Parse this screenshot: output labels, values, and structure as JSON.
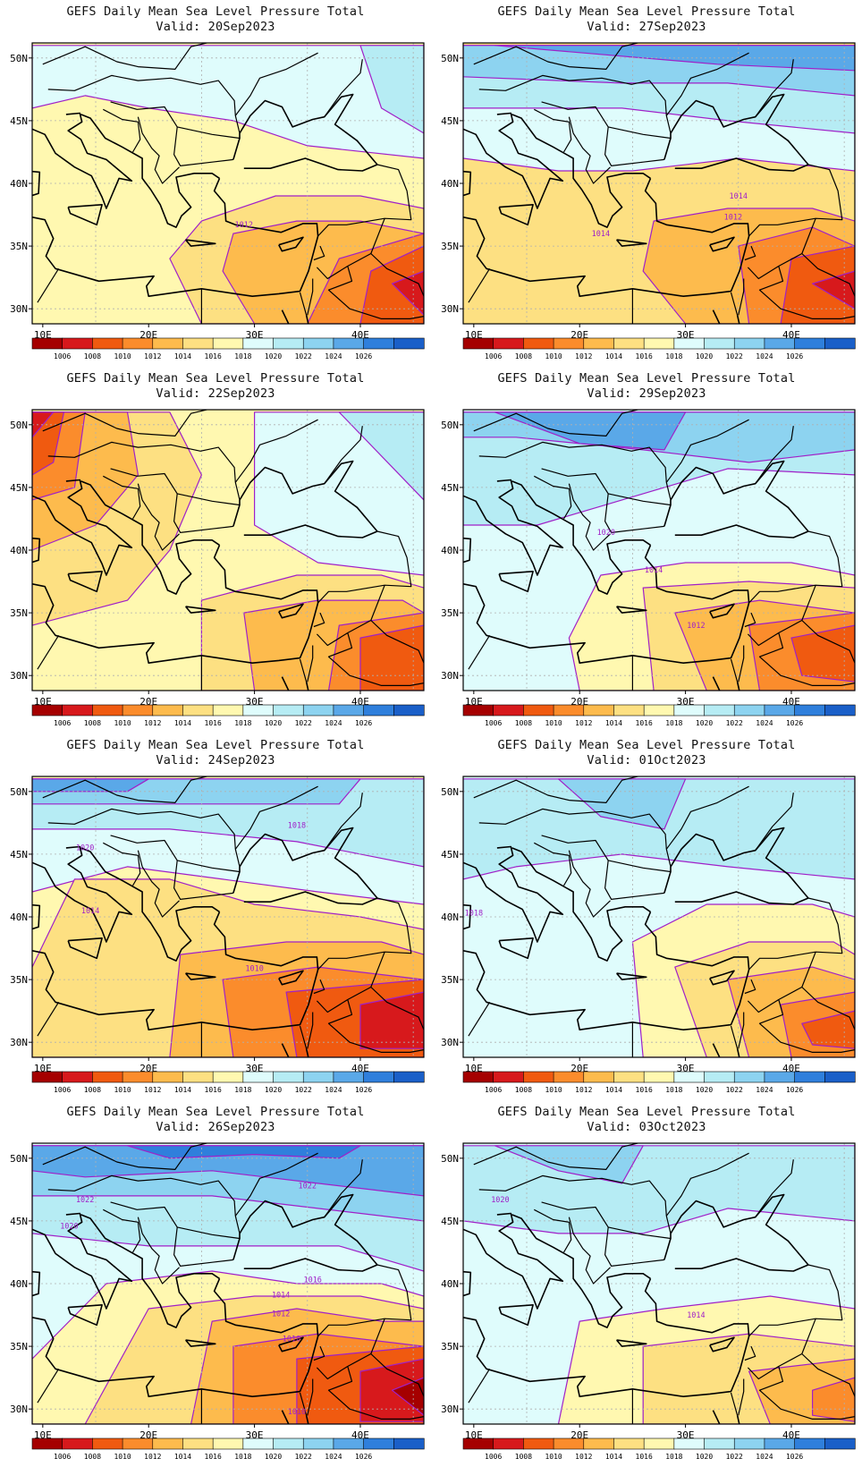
{
  "figure": {
    "colorbar": {
      "labels": [
        "1006",
        "1008",
        "1010",
        "1012",
        "1014",
        "1016",
        "1018",
        "1020",
        "1022",
        "1024",
        "1026"
      ],
      "colors": [
        "#a50000",
        "#d7191c",
        "#f05a10",
        "#fb8c2c",
        "#fdbb4d",
        "#fde082",
        "#fff8b0",
        "#dffcfc",
        "#b6ecf4",
        "#8dd3f0",
        "#5aa8e8",
        "#2f7fdc",
        "#1a5fc8"
      ]
    },
    "axes": {
      "x_ticks": [
        "10E",
        "20E",
        "30E",
        "40E"
      ],
      "y_ticks": [
        "50N",
        "45N",
        "40N",
        "35N",
        "30N"
      ]
    },
    "contour_color": "#a020c8",
    "panels": [
      {
        "title": "GEFS Daily Mean Sea Level Pressure Total",
        "valid": "Valid: 20Sep2023",
        "labels": [
          "1012"
        ]
      },
      {
        "title": "GEFS Daily Mean Sea Level Pressure Total",
        "valid": "Valid: 27Sep2023",
        "labels": [
          "1014",
          "1012",
          "1014"
        ]
      },
      {
        "title": "GEFS Daily Mean Sea Level Pressure Total",
        "valid": "Valid: 22Sep2023",
        "labels": []
      },
      {
        "title": "GEFS Daily Mean Sea Level Pressure Total",
        "valid": "Valid: 29Sep2023",
        "labels": [
          "1020",
          "1014",
          "1012"
        ]
      },
      {
        "title": "GEFS Daily Mean Sea Level Pressure Total",
        "valid": "Valid: 24Sep2023",
        "labels": [
          "1018",
          "1020",
          "1014",
          "1010"
        ]
      },
      {
        "title": "GEFS Daily Mean Sea Level Pressure Total",
        "valid": "Valid: 01Oct2023",
        "labels": [
          "1018"
        ]
      },
      {
        "title": "GEFS Daily Mean Sea Level Pressure Total",
        "valid": "Valid: 26Sep2023",
        "labels": [
          "1022",
          "1022",
          "1020",
          "1016",
          "1014",
          "1012",
          "1010",
          "1010"
        ]
      },
      {
        "title": "GEFS Daily Mean Sea Level Pressure Total",
        "valid": "Valid: 03Oct2023",
        "labels": [
          "1020",
          "1014"
        ]
      }
    ]
  }
}
